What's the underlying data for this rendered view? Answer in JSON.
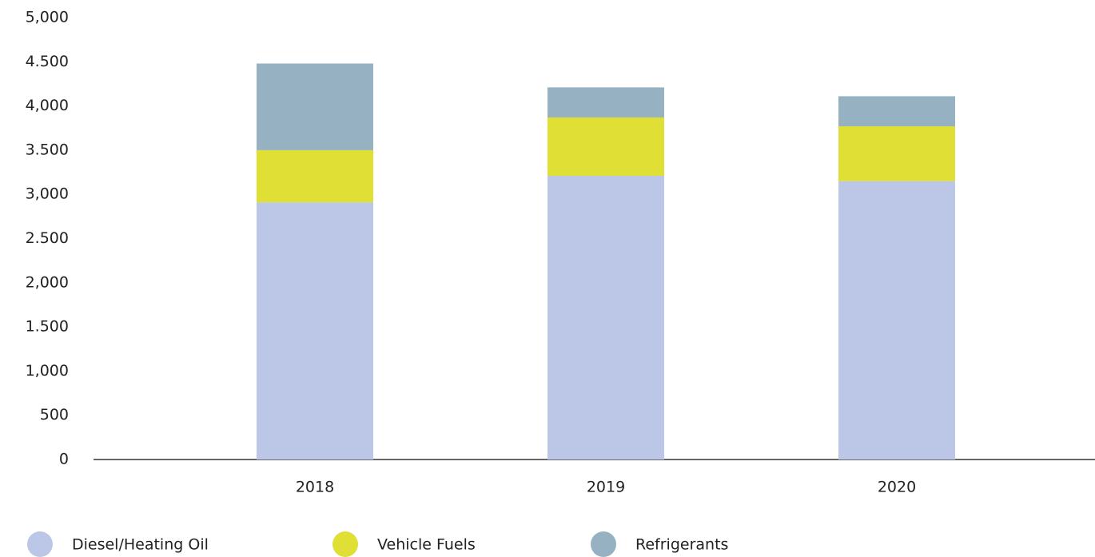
{
  "chart_data": {
    "type": "stacked_bar",
    "categories": [
      "2018",
      "2019",
      "2020"
    ],
    "series": [
      {
        "name": "Diesel/Heating Oil",
        "color": "#bcc6e6",
        "values": [
          2910,
          3210,
          3150
        ]
      },
      {
        "name": "Vehicle Fuels",
        "color": "#dfdf36",
        "values": [
          590,
          660,
          620
        ]
      },
      {
        "name": "Refrigerants",
        "color": "#95b1c2",
        "values": [
          980,
          340,
          340
        ]
      }
    ],
    "ylim": [
      0,
      5000
    ],
    "yticks": [
      0,
      500,
      {
        "value": 1000,
        "label": "1,000"
      },
      {
        "value": 1500,
        "label": "1.500"
      },
      {
        "value": 2000,
        "label": "2,000"
      },
      {
        "value": 2500,
        "label": "2.500"
      },
      {
        "value": 3000,
        "label": "3,000"
      },
      {
        "value": 3500,
        "label": "3.500"
      },
      {
        "value": 4000,
        "label": "4,000"
      },
      {
        "value": 4500,
        "label": "4.500"
      },
      {
        "value": 5000,
        "label": "5,000"
      }
    ],
    "legend": "bottom-left"
  }
}
